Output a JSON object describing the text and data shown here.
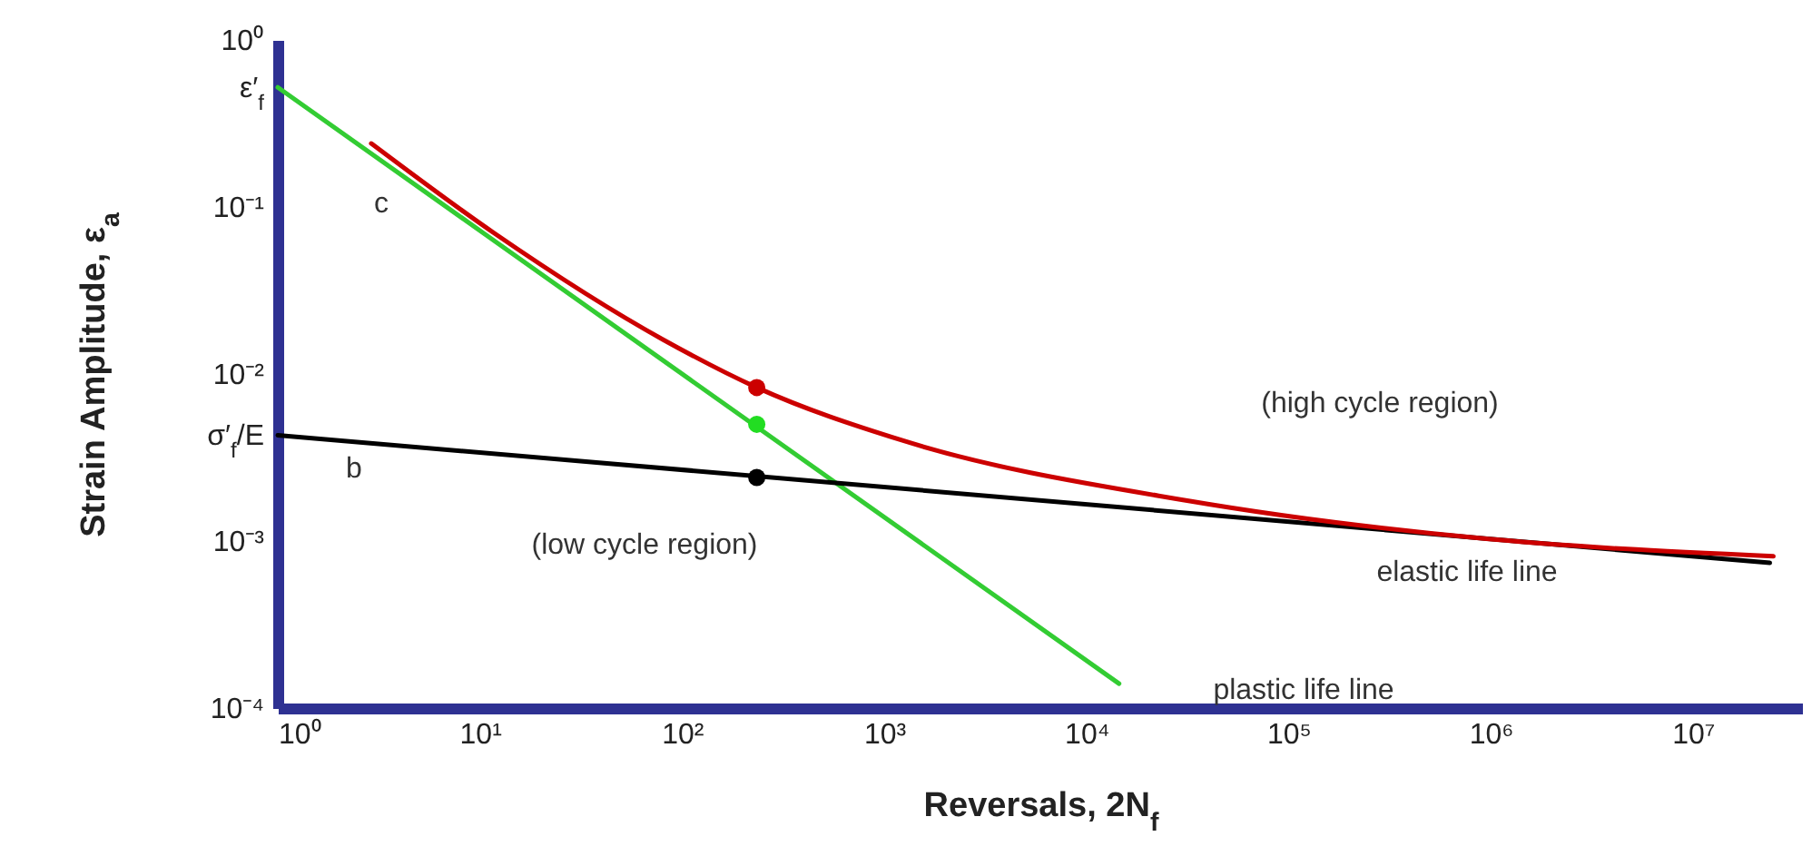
{
  "chart_data": {
    "type": "line",
    "xlabel": "Reversals, 2N$_{f}$",
    "ylabel": "Strain Amplitude, ε$_{a}$",
    "log": "xy",
    "grid": false,
    "xlim": [
      1,
      35000000
    ],
    "ylim": [
      0.0001,
      1
    ],
    "xticks": [
      {
        "value": 1,
        "label": "10⁰"
      },
      {
        "value": 10,
        "label": "10¹"
      },
      {
        "value": 100,
        "label": "10²"
      },
      {
        "value": 1000,
        "label": "10³"
      },
      {
        "value": 10000,
        "label": "10⁴"
      },
      {
        "value": 100000,
        "label": "10⁵"
      },
      {
        "value": 1000000,
        "label": "10⁶"
      },
      {
        "value": 10000000,
        "label": "10⁷"
      }
    ],
    "yticks": [
      {
        "value": 0.0001,
        "label": "10⁻⁴"
      },
      {
        "value": 0.001,
        "label": "10⁻³"
      },
      {
        "value": 0.0043,
        "label": "σ′$_{f}$/E"
      },
      {
        "value": 0.01,
        "label": "10⁻²"
      },
      {
        "value": 0.1,
        "label": "10⁻¹"
      },
      {
        "value": 0.52,
        "label": "ε′$_{f}$"
      },
      {
        "value": 1,
        "label": "10⁰"
      }
    ],
    "series": [
      {
        "color": "#33cc33",
        "x": [
          1,
          14500
        ],
        "values": [
          0.52,
          0.00014
        ]
      },
      {
        "color": "#000000",
        "x": [
          1,
          24000000
        ],
        "values": [
          0.0043,
          0.00074
        ]
      },
      {
        "color": "#cc0000",
        "x": [
          2.9,
          11.7,
          81,
          234,
          1230,
          32000,
          810000,
          25000000
        ],
        "values": [
          0.24,
          0.07,
          0.016,
          0.0083,
          0.004,
          0.00174,
          0.00105,
          0.00081
        ]
      },
      {
        "type": "scatter",
        "color": "#cc0000",
        "x": [
          234
        ],
        "values": [
          0.0083
        ]
      },
      {
        "type": "scatter",
        "color": "#22dd22",
        "x": [
          234
        ],
        "values": [
          0.005
        ]
      },
      {
        "type": "scatter",
        "color": "#000000",
        "x": [
          234
        ],
        "values": [
          0.0024
        ]
      }
    ],
    "annotations": [
      "(high cycle region)",
      "(low cycle region)",
      "elastic life line",
      "plastic life line",
      "c",
      "b"
    ]
  }
}
